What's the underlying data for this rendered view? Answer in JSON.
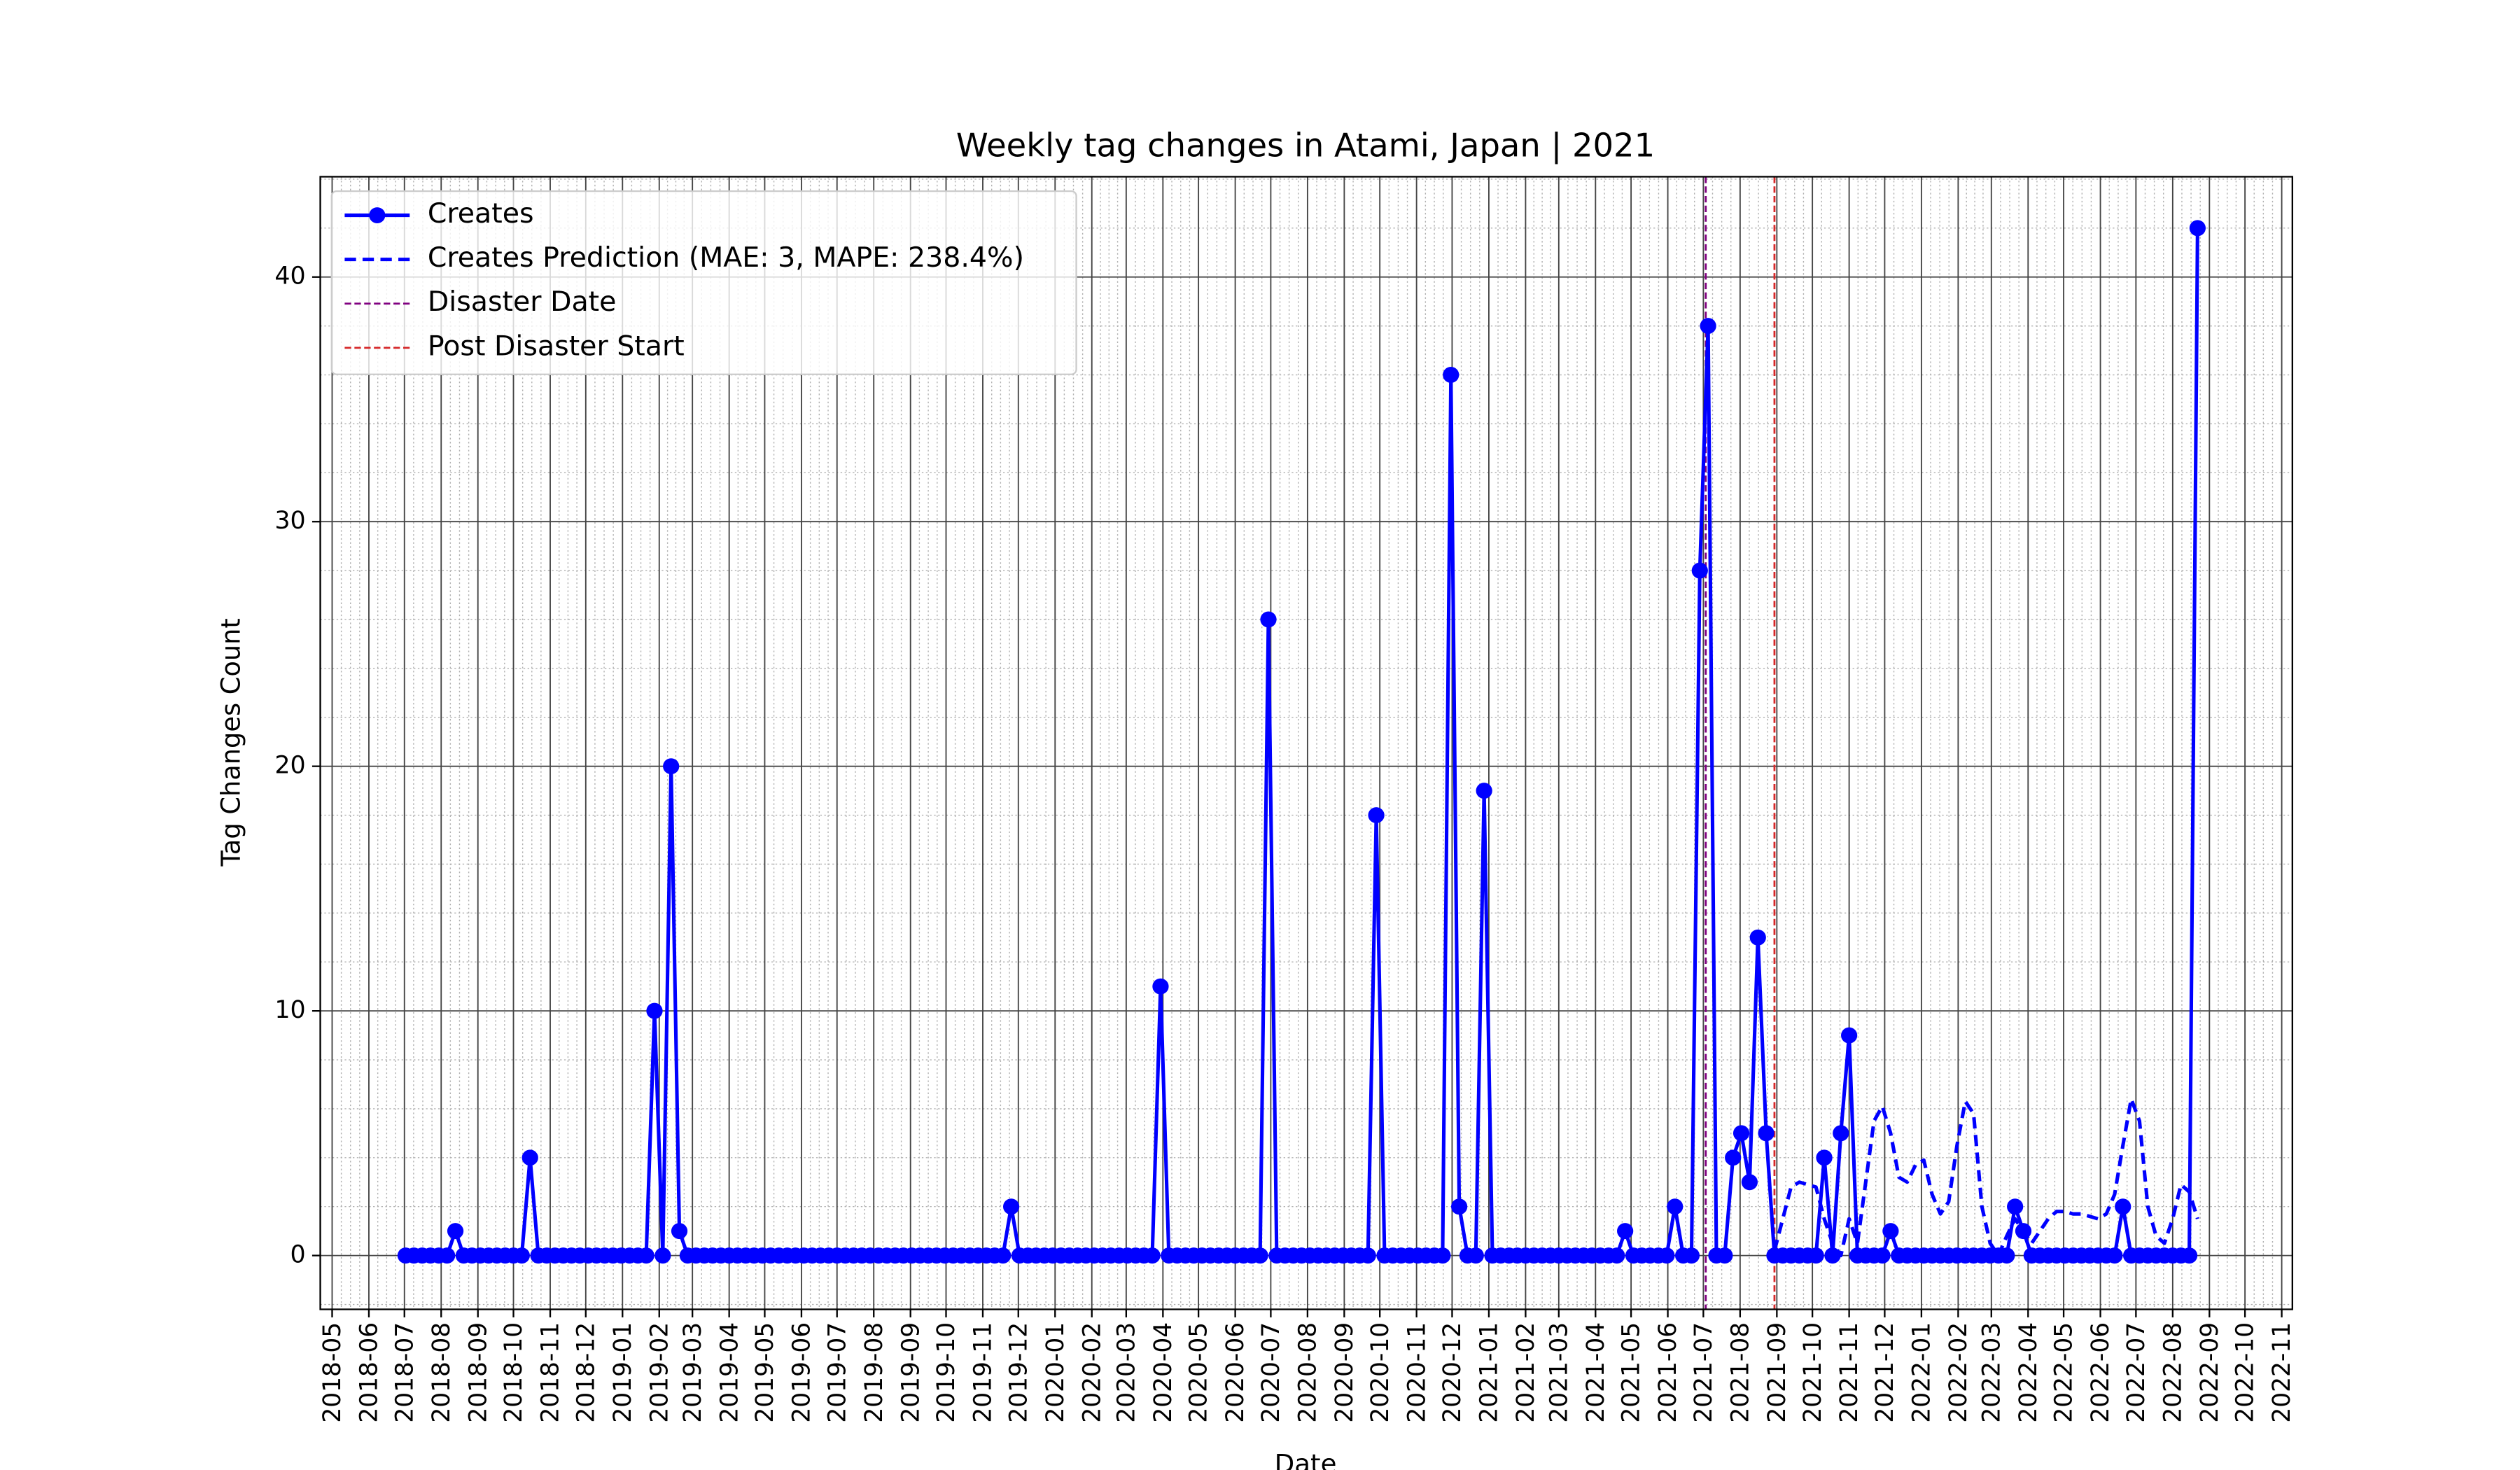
{
  "chart_data": {
    "type": "line",
    "title": "Weekly tag changes in Atami, Japan | 2021",
    "xlabel": "Date",
    "ylabel": "Tag Changes Count",
    "x": [
      "2018-07-02",
      "2018-07-09",
      "2018-07-16",
      "2018-07-23",
      "2018-07-30",
      "2018-08-06",
      "2018-08-13",
      "2018-08-20",
      "2018-08-27",
      "2018-09-03",
      "2018-09-10",
      "2018-09-17",
      "2018-09-24",
      "2018-10-01",
      "2018-10-08",
      "2018-10-15",
      "2018-10-22",
      "2018-10-29",
      "2018-11-05",
      "2018-11-12",
      "2018-11-19",
      "2018-11-26",
      "2018-12-03",
      "2018-12-10",
      "2018-12-17",
      "2018-12-24",
      "2018-12-31",
      "2019-01-07",
      "2019-01-14",
      "2019-01-21",
      "2019-01-28",
      "2019-02-04",
      "2019-02-11",
      "2019-02-18",
      "2019-02-25",
      "2019-03-04",
      "2019-03-11",
      "2019-03-18",
      "2019-03-25",
      "2019-04-01",
      "2019-04-08",
      "2019-04-15",
      "2019-04-22",
      "2019-04-29",
      "2019-05-06",
      "2019-05-13",
      "2019-05-20",
      "2019-05-27",
      "2019-06-03",
      "2019-06-10",
      "2019-06-17",
      "2019-06-24",
      "2019-07-01",
      "2019-07-08",
      "2019-07-15",
      "2019-07-22",
      "2019-07-29",
      "2019-08-05",
      "2019-08-12",
      "2019-08-19",
      "2019-08-26",
      "2019-09-02",
      "2019-09-09",
      "2019-09-16",
      "2019-09-23",
      "2019-09-30",
      "2019-10-07",
      "2019-10-14",
      "2019-10-21",
      "2019-10-28",
      "2019-11-04",
      "2019-11-11",
      "2019-11-18",
      "2019-11-25",
      "2019-12-02",
      "2019-12-09",
      "2019-12-16",
      "2019-12-23",
      "2019-12-30",
      "2020-01-06",
      "2020-01-13",
      "2020-01-20",
      "2020-01-27",
      "2020-02-03",
      "2020-02-10",
      "2020-02-17",
      "2020-02-24",
      "2020-03-02",
      "2020-03-09",
      "2020-03-16",
      "2020-03-23",
      "2020-03-30",
      "2020-04-06",
      "2020-04-13",
      "2020-04-20",
      "2020-04-27",
      "2020-05-04",
      "2020-05-11",
      "2020-05-18",
      "2020-05-25",
      "2020-06-01",
      "2020-06-08",
      "2020-06-15",
      "2020-06-22",
      "2020-06-29",
      "2020-07-06",
      "2020-07-13",
      "2020-07-20",
      "2020-07-27",
      "2020-08-03",
      "2020-08-10",
      "2020-08-17",
      "2020-08-24",
      "2020-08-31",
      "2020-09-07",
      "2020-09-14",
      "2020-09-21",
      "2020-09-28",
      "2020-10-05",
      "2020-10-12",
      "2020-10-19",
      "2020-10-26",
      "2020-11-02",
      "2020-11-09",
      "2020-11-16",
      "2020-11-23",
      "2020-11-30",
      "2020-12-07",
      "2020-12-14",
      "2020-12-21",
      "2020-12-28",
      "2021-01-04",
      "2021-01-11",
      "2021-01-18",
      "2021-01-25",
      "2021-02-01",
      "2021-02-08",
      "2021-02-15",
      "2021-02-22",
      "2021-03-01",
      "2021-03-08",
      "2021-03-15",
      "2021-03-22",
      "2021-03-29",
      "2021-04-05",
      "2021-04-12",
      "2021-04-19",
      "2021-04-26",
      "2021-05-03",
      "2021-05-10",
      "2021-05-17",
      "2021-05-24",
      "2021-05-31",
      "2021-06-07",
      "2021-06-14",
      "2021-06-21",
      "2021-06-28",
      "2021-07-05",
      "2021-07-12",
      "2021-07-19",
      "2021-07-26",
      "2021-08-02",
      "2021-08-09",
      "2021-08-16",
      "2021-08-23",
      "2021-08-30",
      "2021-09-06",
      "2021-09-13",
      "2021-09-20",
      "2021-09-27",
      "2021-10-04",
      "2021-10-11",
      "2021-10-18",
      "2021-10-25",
      "2021-11-01",
      "2021-11-08",
      "2021-11-15",
      "2021-11-22",
      "2021-11-29",
      "2021-12-06",
      "2021-12-13",
      "2021-12-20",
      "2021-12-27",
      "2022-01-03",
      "2022-01-10",
      "2022-01-17",
      "2022-01-24",
      "2022-01-31",
      "2022-02-07",
      "2022-02-14",
      "2022-02-21",
      "2022-02-28",
      "2022-03-07",
      "2022-03-14",
      "2022-03-21",
      "2022-03-28",
      "2022-04-04",
      "2022-04-11",
      "2022-04-18",
      "2022-04-25",
      "2022-05-02",
      "2022-05-09",
      "2022-05-16",
      "2022-05-23",
      "2022-05-30",
      "2022-06-06",
      "2022-06-13",
      "2022-06-20",
      "2022-06-27",
      "2022-07-04",
      "2022-07-11",
      "2022-07-18",
      "2022-07-25",
      "2022-08-01",
      "2022-08-08",
      "2022-08-15",
      "2022-08-22"
    ],
    "series": [
      {
        "name": "Creates",
        "color": "#0000ff",
        "linestyle": "solid",
        "marker": "circle",
        "values": [
          0,
          0,
          0,
          0,
          0,
          0,
          1,
          0,
          0,
          0,
          0,
          0,
          0,
          0,
          0,
          4,
          0,
          0,
          0,
          0,
          0,
          0,
          0,
          0,
          0,
          0,
          0,
          0,
          0,
          0,
          10,
          0,
          20,
          1,
          0,
          0,
          0,
          0,
          0,
          0,
          0,
          0,
          0,
          0,
          0,
          0,
          0,
          0,
          0,
          0,
          0,
          0,
          0,
          0,
          0,
          0,
          0,
          0,
          0,
          0,
          0,
          0,
          0,
          0,
          0,
          0,
          0,
          0,
          0,
          0,
          0,
          0,
          0,
          2,
          0,
          0,
          0,
          0,
          0,
          0,
          0,
          0,
          0,
          0,
          0,
          0,
          0,
          0,
          0,
          0,
          0,
          11,
          0,
          0,
          0,
          0,
          0,
          0,
          0,
          0,
          0,
          0,
          0,
          0,
          26,
          0,
          0,
          0,
          0,
          0,
          0,
          0,
          0,
          0,
          0,
          0,
          0,
          18,
          0,
          0,
          0,
          0,
          0,
          0,
          0,
          0,
          36,
          2,
          0,
          0,
          19,
          0,
          0,
          0,
          0,
          0,
          0,
          0,
          0,
          0,
          0,
          0,
          0,
          0,
          0,
          0,
          0,
          1,
          0,
          0,
          0,
          0,
          0,
          2,
          0,
          0,
          28,
          38,
          0,
          0,
          4,
          5,
          3,
          13,
          5,
          0,
          0,
          0,
          0,
          0,
          0,
          4,
          0,
          5,
          9,
          0,
          0,
          0,
          0,
          1,
          0,
          0,
          0,
          0,
          0,
          0,
          0,
          0,
          0,
          0,
          0,
          0,
          0,
          0,
          2,
          1,
          0,
          0,
          0,
          0,
          0,
          0,
          0,
          0,
          0,
          0,
          0,
          2,
          0,
          0,
          0,
          0,
          0,
          0,
          0,
          0,
          42
        ]
      },
      {
        "name": "Creates Prediction (MAE: 3, MAPE: 238.4%)",
        "color": "#0000ff",
        "linestyle": "dashed",
        "values": [
          null,
          null,
          null,
          null,
          null,
          null,
          null,
          null,
          null,
          null,
          null,
          null,
          null,
          null,
          null,
          null,
          null,
          null,
          null,
          null,
          null,
          null,
          null,
          null,
          null,
          null,
          null,
          null,
          null,
          null,
          null,
          null,
          null,
          null,
          null,
          null,
          null,
          null,
          null,
          null,
          null,
          null,
          null,
          null,
          null,
          null,
          null,
          null,
          null,
          null,
          null,
          null,
          null,
          null,
          null,
          null,
          null,
          null,
          null,
          null,
          null,
          null,
          null,
          null,
          null,
          null,
          null,
          null,
          null,
          null,
          null,
          null,
          null,
          null,
          null,
          null,
          null,
          null,
          null,
          null,
          null,
          null,
          null,
          null,
          null,
          null,
          null,
          null,
          null,
          null,
          null,
          null,
          null,
          null,
          null,
          null,
          null,
          null,
          null,
          null,
          null,
          null,
          null,
          null,
          null,
          null,
          null,
          null,
          null,
          null,
          null,
          null,
          null,
          null,
          null,
          null,
          null,
          null,
          null,
          null,
          null,
          null,
          null,
          null,
          null,
          null,
          null,
          null,
          null,
          null,
          null,
          null,
          null,
          null,
          null,
          null,
          null,
          null,
          null,
          null,
          null,
          null,
          null,
          null,
          null,
          null,
          null,
          null,
          null,
          null,
          null,
          null,
          null,
          null,
          null,
          null,
          null,
          null,
          null,
          null,
          null,
          null,
          null,
          null,
          null,
          0.2,
          1.5,
          2.8,
          3,
          2.9,
          2.8,
          1.5,
          0.5,
          0,
          1.5,
          0.5,
          3,
          5.5,
          6.1,
          5,
          3.2,
          3,
          3.7,
          3.9,
          2.5,
          1.7,
          2.2,
          4.5,
          6.3,
          5.8,
          2,
          0.5,
          0,
          0.8,
          1.5,
          1,
          0.5,
          1,
          1.5,
          1.8,
          1.8,
          1.7,
          1.7,
          1.6,
          1.5,
          1.7,
          2.5,
          4.5,
          6.4,
          5.5,
          2,
          0.8,
          0.5,
          1.5,
          2.9,
          2.6,
          1.5
        ]
      }
    ],
    "vlines": [
      {
        "name": "Disaster Date",
        "x": "2021-07-03",
        "color": "#800080"
      },
      {
        "name": "Post Disaster Start",
        "x": "2021-08-30",
        "color": "#d62728"
      }
    ],
    "xlim": [
      "2018-04-21",
      "2022-11-10"
    ],
    "xticks": [
      "2018-05",
      "2018-06",
      "2018-07",
      "2018-08",
      "2018-09",
      "2018-10",
      "2018-11",
      "2018-12",
      "2019-01",
      "2019-02",
      "2019-03",
      "2019-04",
      "2019-05",
      "2019-06",
      "2019-07",
      "2019-08",
      "2019-09",
      "2019-10",
      "2019-11",
      "2019-12",
      "2020-01",
      "2020-02",
      "2020-03",
      "2020-04",
      "2020-05",
      "2020-06",
      "2020-07",
      "2020-08",
      "2020-09",
      "2020-10",
      "2020-11",
      "2020-12",
      "2021-01",
      "2021-02",
      "2021-03",
      "2021-04",
      "2021-05",
      "2021-06",
      "2021-07",
      "2021-08",
      "2021-09",
      "2021-10",
      "2021-11",
      "2021-12",
      "2022-01",
      "2022-02",
      "2022-03",
      "2022-04",
      "2022-05",
      "2022-06",
      "2022-07",
      "2022-08",
      "2022-09",
      "2022-10",
      "2022-11"
    ],
    "ylim": [
      -2.2,
      44.1
    ],
    "yticks": [
      0,
      10,
      20,
      30,
      40
    ],
    "grid": true,
    "minor_grid": true,
    "legend": "upper left"
  }
}
